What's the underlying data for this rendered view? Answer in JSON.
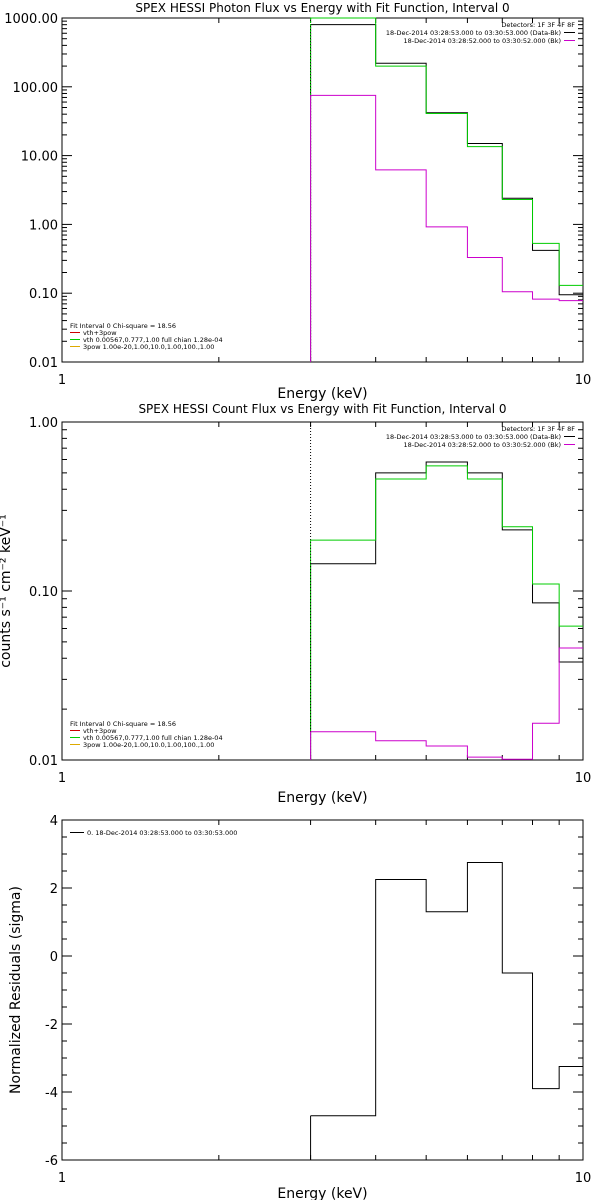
{
  "chart_data": [
    {
      "type": "line",
      "title": "SPEX HESSI Photon Flux vs Energy with Fit Function, Interval 0",
      "xlabel": "Energy (keV)",
      "ylabel": "",
      "xscale": "log",
      "yscale": "log",
      "xlim": [
        1,
        10
      ],
      "ylim": [
        0.01,
        1000
      ],
      "xtick_labels": [
        "1",
        "10"
      ],
      "ytick_values": [
        0.01,
        0.1,
        1,
        10,
        100,
        1000
      ],
      "ytick_labels": [
        "0.01",
        "0.10",
        "1.00",
        "10.00",
        "100.00",
        "1000.00"
      ],
      "vline_x": 3,
      "legend_right": {
        "header": "Detectors: 1F 3F 4F 8F",
        "entries": [
          {
            "text": "18-Dec-2014 03:28:53.000 to 03:30:53.000 (Data-Bk)",
            "color": "#000000"
          },
          {
            "text": "18-Dec-2014 03:28:52.000 to 03:30:52.000 (Bk)",
            "color": "#cc00cc"
          }
        ]
      },
      "legend_left": {
        "header": "Fit Interval  0   Chi-square = 18.56",
        "entries": [
          {
            "text": "vth+3pow",
            "color": "#cc0000"
          },
          {
            "text": "vth 0.00567,0.777,1.00   full chian 1.28e-04",
            "color": "#00cc00"
          },
          {
            "text": "3pow 1.00e-20,1.00,10.0,1.00,100.,1.00",
            "color": "#ddaa00"
          }
        ]
      },
      "bin_edges": [
        3,
        4,
        5,
        6,
        7,
        8,
        9,
        10
      ],
      "series": [
        {
          "color": "#000000",
          "values": [
            800,
            220,
            42,
            15,
            2.4,
            0.42,
            0.095
          ]
        },
        {
          "color": "#00cc00",
          "values": [
            1050,
            200,
            41,
            13.5,
            2.3,
            0.53,
            0.13
          ]
        },
        {
          "color": "#cc00cc",
          "values": [
            75,
            6.2,
            0.92,
            0.33,
            0.105,
            0.082,
            0.078
          ]
        }
      ]
    },
    {
      "type": "line",
      "title": "SPEX HESSI Count Flux vs Energy with Fit Function, Interval 0",
      "xlabel": "Energy (keV)",
      "ylabel": "counts s⁻¹ cm⁻² keV⁻¹",
      "xscale": "log",
      "yscale": "log",
      "xlim": [
        1,
        10
      ],
      "ylim": [
        0.01,
        1
      ],
      "xtick_labels": [
        "1",
        "10"
      ],
      "ytick_values": [
        0.01,
        0.1,
        1
      ],
      "ytick_labels": [
        "0.01",
        "0.10",
        "1.00"
      ],
      "vline_x": 3,
      "legend_right": {
        "header": "Detectors: 1F 3F 4F 8F",
        "entries": [
          {
            "text": "18-Dec-2014 03:28:53.000 to 03:30:53.000 (Data-Bk)",
            "color": "#000000"
          },
          {
            "text": "18-Dec-2014 03:28:52.000 to 03:30:52.000 (Bk)",
            "color": "#cc00cc"
          }
        ]
      },
      "legend_left": {
        "header": "Fit Interval  0   Chi-square = 18.56",
        "entries": [
          {
            "text": "vth+3pow",
            "color": "#cc0000"
          },
          {
            "text": "vth 0.00567,0.777,1.00   full chian 1.28e-04",
            "color": "#00cc00"
          },
          {
            "text": "3pow 1.00e-20,1.00,10.0,1.00,100.,1.00",
            "color": "#ddaa00"
          }
        ]
      },
      "bin_edges": [
        3,
        4,
        5,
        6,
        7,
        8,
        9,
        10
      ],
      "series": [
        {
          "color": "#000000",
          "values": [
            0.145,
            0.5,
            0.58,
            0.5,
            0.23,
            0.085,
            0.038
          ]
        },
        {
          "color": "#00cc00",
          "values": [
            0.2,
            0.46,
            0.55,
            0.46,
            0.24,
            0.11,
            0.062
          ]
        },
        {
          "color": "#cc00cc",
          "values": [
            0.0147,
            0.013,
            0.0121,
            0.0104,
            0.0101,
            0.0165,
            0.046
          ]
        }
      ]
    },
    {
      "type": "line",
      "title": "",
      "xlabel": "Energy (keV)",
      "ylabel": "Normalized Residuals (sigma)",
      "xscale": "log",
      "yscale": "linear",
      "xlim": [
        1,
        10
      ],
      "ylim": [
        -6,
        4
      ],
      "xtick_labels": [
        "1",
        "10"
      ],
      "ytick_values": [
        -6,
        -4,
        -2,
        0,
        2,
        4
      ],
      "ytick_labels": [
        "-6",
        "-4",
        "-2",
        "0",
        "2",
        "4"
      ],
      "legend_right": null,
      "legend_left": null,
      "legend_top": {
        "text": "0. 18-Dec-2014 03:28:53.000 to 03:30:53.000",
        "color": "#000000"
      },
      "bin_edges": [
        3,
        4,
        5,
        6,
        7,
        8,
        9,
        10
      ],
      "series": [
        {
          "color": "#000000",
          "values": [
            -4.7,
            2.25,
            1.3,
            2.75,
            -0.5,
            -3.9,
            -3.25
          ]
        }
      ]
    }
  ]
}
